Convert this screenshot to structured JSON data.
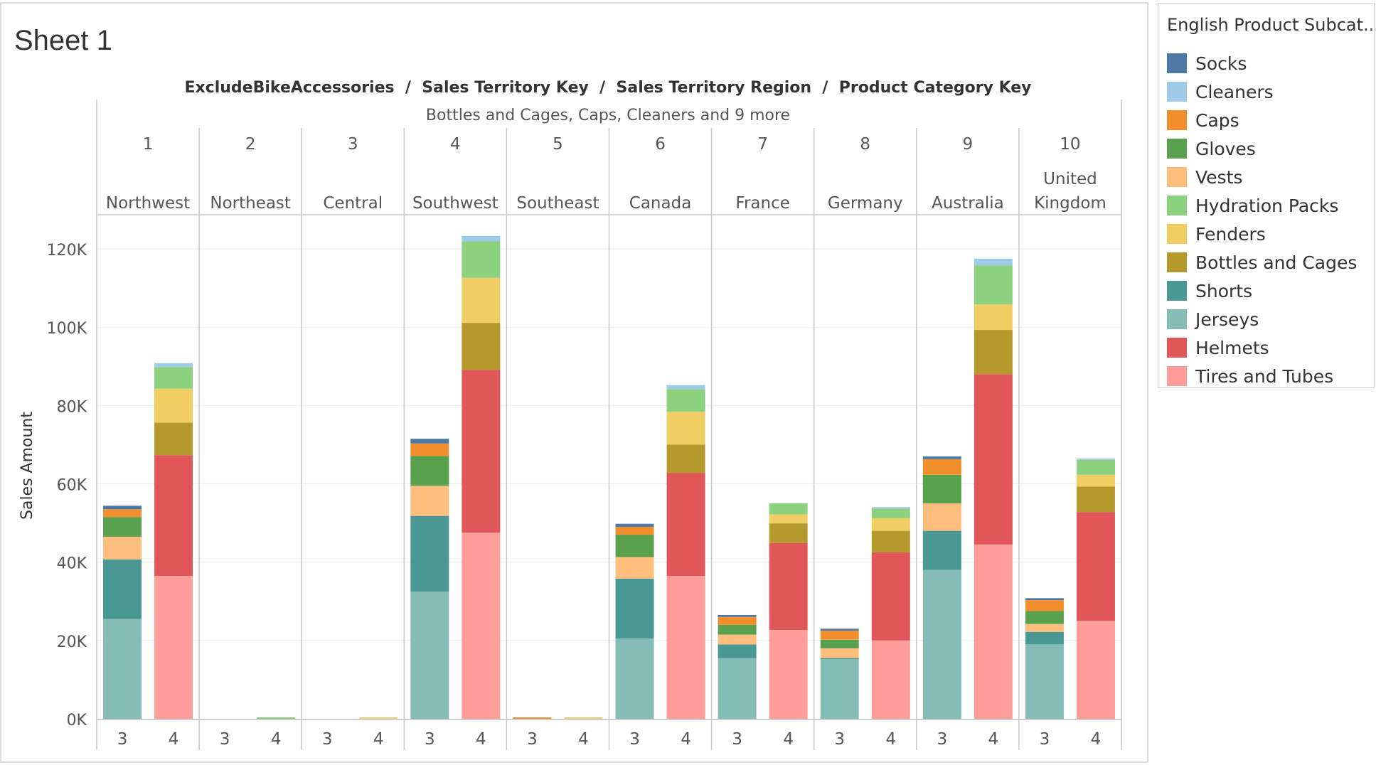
{
  "sheet": {
    "title": "Sheet 1",
    "header_path": "ExcludeBikeAccessories  /  Sales Territory Key  /  Sales Territory Region  /  Product Category Key",
    "filter_note": "Bottles and Cages, Caps, Cleaners and 9 more",
    "y_axis_label": "Sales Amount"
  },
  "legend": {
    "title": "English Product Subcat...",
    "items": [
      {
        "label": "Socks",
        "color": "#4e79a7"
      },
      {
        "label": "Cleaners",
        "color": "#a0cbe8"
      },
      {
        "label": "Caps",
        "color": "#f28e2b"
      },
      {
        "label": "Gloves",
        "color": "#59a14f"
      },
      {
        "label": "Vests",
        "color": "#ffbe7d"
      },
      {
        "label": "Hydration Packs",
        "color": "#8cd17d"
      },
      {
        "label": "Fenders",
        "color": "#f1ce63"
      },
      {
        "label": "Bottles and Cages",
        "color": "#b6992d"
      },
      {
        "label": "Shorts",
        "color": "#499894"
      },
      {
        "label": "Jerseys",
        "color": "#86bcb6"
      },
      {
        "label": "Helmets",
        "color": "#e15759"
      },
      {
        "label": "Tires and Tubes",
        "color": "#ff9d9a"
      }
    ]
  },
  "chart_data": {
    "type": "bar",
    "stacked": true,
    "ylabel": "Sales Amount",
    "ylim": [
      0,
      120000
    ],
    "y_ticks": [
      0,
      20000,
      40000,
      60000,
      80000,
      100000,
      120000
    ],
    "y_tick_labels": [
      "0K",
      "20K",
      "40K",
      "60K",
      "80K",
      "100K",
      "120K"
    ],
    "grid": true,
    "legend_position": "right",
    "stack_order": [
      "Jerseys",
      "Shorts",
      "Vests",
      "Gloves",
      "Caps",
      "Socks",
      "Tires and Tubes",
      "Helmets",
      "Bottles and Cages",
      "Fenders",
      "Hydration Packs",
      "Cleaners"
    ],
    "territories": [
      {
        "key": "1",
        "region": "Northwest",
        "bars": [
          {
            "category": "3",
            "segments": {
              "Jerseys": 25500,
              "Shorts": 15200,
              "Vests": 5800,
              "Gloves": 5000,
              "Caps": 2000,
              "Socks": 900
            }
          },
          {
            "category": "4",
            "segments": {
              "Tires and Tubes": 36500,
              "Helmets": 30800,
              "Bottles and Cages": 8300,
              "Fenders": 8700,
              "Hydration Packs": 5500,
              "Cleaners": 1000
            }
          }
        ]
      },
      {
        "key": "2",
        "region": "Northeast",
        "bars": [
          {
            "category": "3",
            "segments": {}
          },
          {
            "category": "4",
            "segments": {
              "Hydration Packs": 250
            }
          }
        ]
      },
      {
        "key": "3",
        "region": "Central",
        "bars": [
          {
            "category": "3",
            "segments": {}
          },
          {
            "category": "4",
            "segments": {
              "Fenders": 250
            }
          }
        ]
      },
      {
        "key": "4",
        "region": "Southwest",
        "bars": [
          {
            "category": "3",
            "segments": {
              "Jerseys": 32500,
              "Shorts": 19300,
              "Vests": 7700,
              "Gloves": 7600,
              "Caps": 3200,
              "Socks": 1200
            }
          },
          {
            "category": "4",
            "segments": {
              "Tires and Tubes": 47500,
              "Helmets": 41600,
              "Bottles and Cages": 12000,
              "Fenders": 11500,
              "Hydration Packs": 9300,
              "Cleaners": 1400
            }
          }
        ]
      },
      {
        "key": "5",
        "region": "Southeast",
        "bars": [
          {
            "category": "3",
            "segments": {
              "Caps": 250
            }
          },
          {
            "category": "4",
            "segments": {
              "Fenders": 250
            }
          }
        ]
      },
      {
        "key": "6",
        "region": "Canada",
        "bars": [
          {
            "category": "3",
            "segments": {
              "Jerseys": 20500,
              "Shorts": 15300,
              "Vests": 5500,
              "Gloves": 5700,
              "Caps": 2000,
              "Socks": 800
            }
          },
          {
            "category": "4",
            "segments": {
              "Tires and Tubes": 36500,
              "Helmets": 26300,
              "Bottles and Cages": 7200,
              "Fenders": 8400,
              "Hydration Packs": 5800,
              "Cleaners": 1000
            }
          }
        ]
      },
      {
        "key": "7",
        "region": "France",
        "bars": [
          {
            "category": "3",
            "segments": {
              "Jerseys": 15500,
              "Shorts": 3500,
              "Vests": 2500,
              "Gloves": 2500,
              "Caps": 2000,
              "Socks": 500
            }
          },
          {
            "category": "4",
            "segments": {
              "Tires and Tubes": 22700,
              "Helmets": 22200,
              "Bottles and Cages": 5000,
              "Fenders": 2300,
              "Hydration Packs": 2800
            }
          }
        ]
      },
      {
        "key": "8",
        "region": "Germany",
        "bars": [
          {
            "category": "3",
            "segments": {
              "Jerseys": 15200,
              "Shorts": 300,
              "Vests": 2500,
              "Gloves": 2200,
              "Caps": 2300,
              "Socks": 500
            }
          },
          {
            "category": "4",
            "segments": {
              "Tires and Tubes": 20000,
              "Helmets": 22500,
              "Bottles and Cages": 5500,
              "Fenders": 3200,
              "Hydration Packs": 2500,
              "Cleaners": 300
            }
          }
        ]
      },
      {
        "key": "9",
        "region": "Australia",
        "bars": [
          {
            "category": "3",
            "segments": {
              "Jerseys": 38000,
              "Shorts": 10000,
              "Vests": 7000,
              "Gloves": 7300,
              "Caps": 4000,
              "Socks": 700
            }
          },
          {
            "category": "4",
            "segments": {
              "Tires and Tubes": 44500,
              "Helmets": 43500,
              "Bottles and Cages": 11300,
              "Fenders": 6500,
              "Hydration Packs": 10000,
              "Cleaners": 1700
            }
          }
        ]
      },
      {
        "key": "10",
        "region": "United\nKingdom",
        "bars": [
          {
            "category": "3",
            "segments": {
              "Jerseys": 19000,
              "Shorts": 3200,
              "Vests": 2000,
              "Gloves": 3300,
              "Caps": 2800,
              "Socks": 500
            }
          },
          {
            "category": "4",
            "segments": {
              "Tires and Tubes": 25000,
              "Helmets": 27800,
              "Bottles and Cages": 6500,
              "Fenders": 3000,
              "Hydration Packs": 3800,
              "Cleaners": 300
            }
          }
        ]
      }
    ]
  }
}
